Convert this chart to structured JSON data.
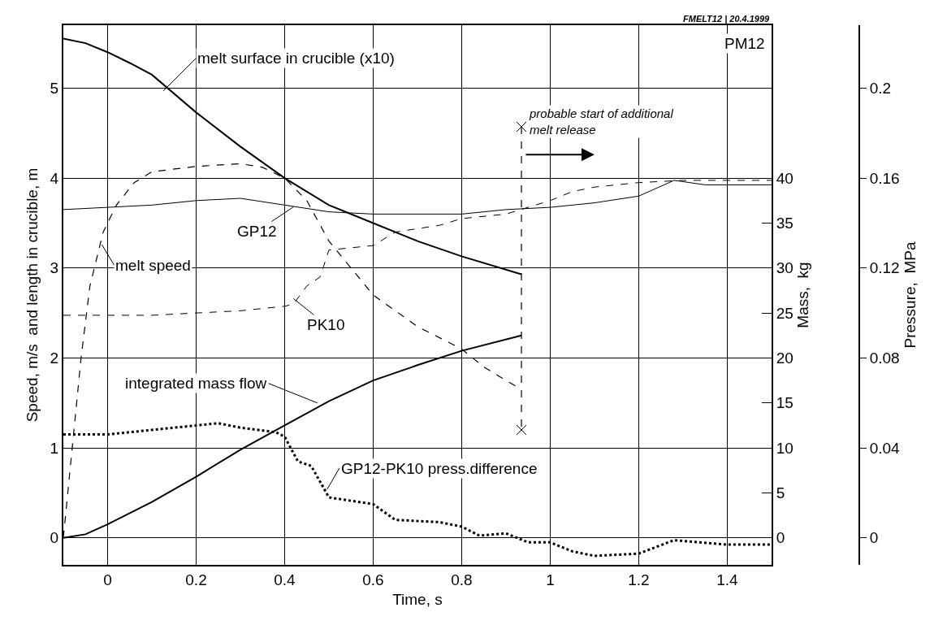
{
  "chart_data": {
    "type": "line",
    "xlabel": "Time, s",
    "ylabel": "Speed, m/s  and length in crucible, m",
    "y2label": "Mass,  kg",
    "y3label": "Pressure,  MPa",
    "xlim": [
      -0.1,
      1.5
    ],
    "xticks": [
      0,
      0.2,
      0.4,
      0.6,
      0.8,
      1,
      1.2,
      1.4
    ],
    "ylim": [
      -0.3,
      5.7
    ],
    "yticks": [
      0,
      1,
      2,
      3,
      4,
      5
    ],
    "y2lim": [
      -3,
      57
    ],
    "y2ticks": [
      0,
      5,
      10,
      15,
      20,
      25,
      30,
      35,
      40
    ],
    "y3lim": [
      -0.012,
      0.228
    ],
    "y3ticks": [
      0,
      0.04,
      0.08,
      0.12,
      0.16,
      0.2
    ],
    "grid": true,
    "series": [
      {
        "color": "#000000",
        "line_style": "solid",
        "x": [
          -0.1,
          -0.05,
          0,
          0.05,
          0.1,
          0.2,
          0.3,
          0.4,
          0.5,
          0.6,
          0.7,
          0.8,
          0.935
        ],
        "values": [
          5.55,
          5.5,
          5.4,
          5.28,
          5.15,
          4.73,
          4.35,
          4.0,
          3.7,
          3.5,
          3.3,
          3.13,
          2.93
        ]
      },
      {
        "color": "#000000",
        "line_style": "dashed",
        "x": [
          -0.1,
          -0.08,
          -0.06,
          -0.04,
          -0.01,
          0.02,
          0.06,
          0.1,
          0.2,
          0.3,
          0.35,
          0.4,
          0.45,
          0.5,
          0.55,
          0.6,
          0.7,
          0.8,
          0.85,
          0.9,
          0.935
        ],
        "values": [
          0,
          1,
          2,
          2.8,
          3.4,
          3.7,
          3.95,
          4.07,
          4.13,
          4.16,
          4.12,
          4.0,
          3.75,
          3.3,
          3.0,
          2.7,
          2.35,
          2.1,
          1.9,
          1.75,
          1.65
        ]
      },
      {
        "color": "#000000",
        "line_style": "solid",
        "axis": "y3",
        "x": [
          -0.1,
          0,
          0.1,
          0.2,
          0.3,
          0.4,
          0.5,
          0.6,
          0.7,
          0.8,
          0.9,
          1.0,
          1.1,
          1.2,
          1.28,
          1.35,
          1.5
        ],
        "values": [
          0.146,
          0.147,
          0.148,
          0.15,
          0.151,
          0.148,
          0.145,
          0.144,
          0.144,
          0.144,
          0.146,
          0.147,
          0.149,
          0.152,
          0.159,
          0.157,
          0.157
        ]
      },
      {
        "color": "#000000",
        "line_style": "dashed",
        "axis": "y3",
        "x": [
          -0.1,
          0,
          0.1,
          0.2,
          0.3,
          0.4,
          0.42,
          0.45,
          0.48,
          0.5,
          0.55,
          0.6,
          0.65,
          0.75,
          0.8,
          0.9,
          1.0,
          1.05,
          1.1,
          1.2,
          1.3,
          1.5
        ],
        "values": [
          0.099,
          0.099,
          0.099,
          0.1,
          0.101,
          0.103,
          0.104,
          0.112,
          0.116,
          0.128,
          0.129,
          0.13,
          0.136,
          0.139,
          0.142,
          0.144,
          0.15,
          0.154,
          0.156,
          0.158,
          0.159,
          0.159
        ]
      },
      {
        "color": "#000000",
        "line_style": "solid",
        "axis": "y2",
        "x": [
          -0.1,
          -0.05,
          0,
          0.1,
          0.2,
          0.3,
          0.4,
          0.5,
          0.6,
          0.7,
          0.8,
          0.935
        ],
        "values": [
          0,
          0.4,
          1.5,
          4,
          6.8,
          9.8,
          12.5,
          15.2,
          17.5,
          19.2,
          20.8,
          22.5
        ]
      },
      {
        "color": "#000000",
        "line_style": "dotted",
        "axis": "y3",
        "x": [
          -0.1,
          0,
          0.1,
          0.2,
          0.25,
          0.3,
          0.38,
          0.4,
          0.43,
          0.46,
          0.5,
          0.6,
          0.65,
          0.75,
          0.8,
          0.84,
          0.9,
          0.95,
          1.0,
          1.05,
          1.1,
          1.2,
          1.28,
          1.4,
          1.5
        ],
        "values": [
          0.046,
          0.046,
          0.048,
          0.05,
          0.051,
          0.049,
          0.047,
          0.045,
          0.034,
          0.032,
          0.018,
          0.015,
          0.008,
          0.007,
          0.005,
          0.001,
          0.002,
          -0.002,
          -0.002,
          -0.006,
          -0.008,
          -0.007,
          -0.001,
          -0.003,
          -0.003
        ]
      },
      {
        "color": "#000000",
        "line_style": "dashed",
        "marker": "cross",
        "x": [
          0.935,
          0.935
        ],
        "values": [
          4.57,
          1.2
        ]
      }
    ],
    "annotations": [
      {
        "text": "melt surface in crucible (x10)",
        "x": 0.126,
        "y": 4.97
      },
      {
        "text": "GP12",
        "x": 0.42,
        "y": 3.68
      },
      {
        "text": "melt speed",
        "x": -0.013,
        "y": 3.26
      },
      {
        "text": "PK10",
        "x": 0.42,
        "y": 2.66
      },
      {
        "text": "integrated mass flow",
        "x": 0.474,
        "y": 1.5
      },
      {
        "text": "GP12-PK10 press.difference",
        "x": 0.496,
        "y": 0.54
      },
      "probable start of additional\nmelt release",
      "PM12",
      "FMELT12 | 20.4.1999"
    ]
  }
}
